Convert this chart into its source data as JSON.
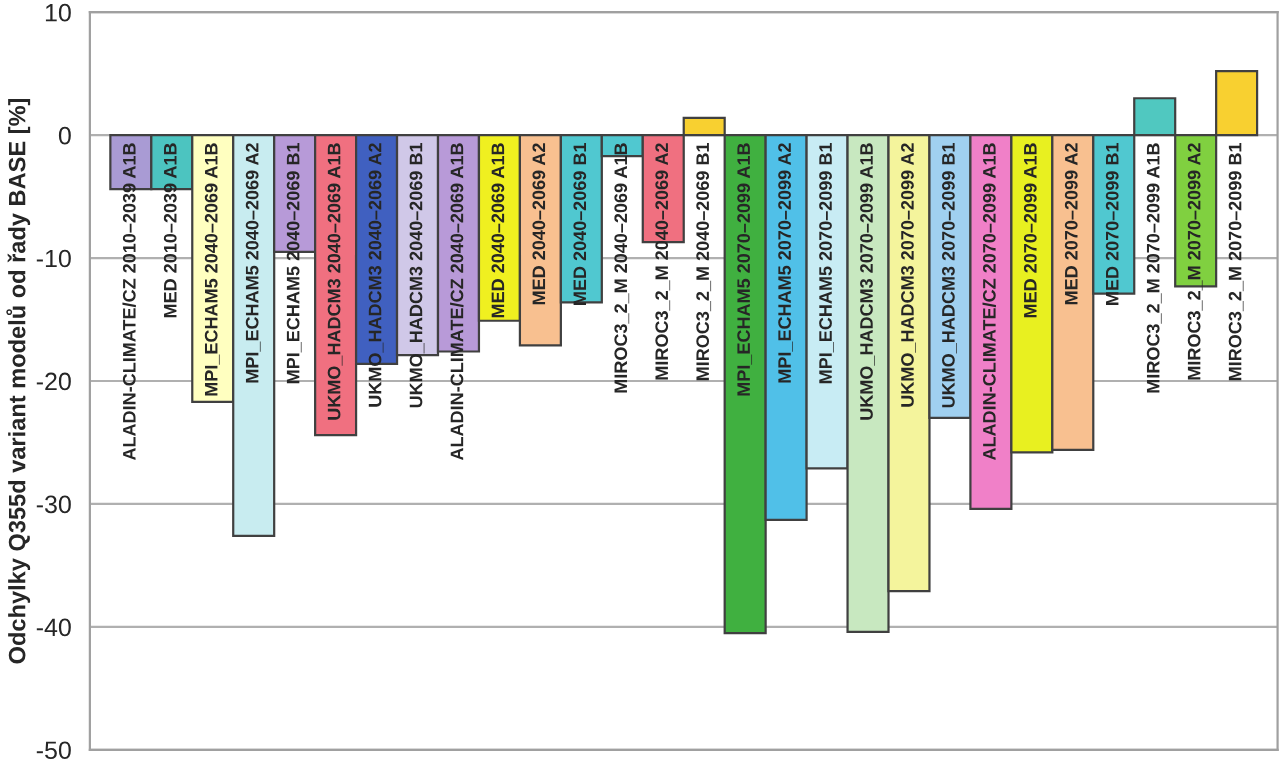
{
  "chart_data": {
    "type": "bar",
    "ylabel": "Odchylky Q355d variant modelů od řady BASE [%]",
    "categories": [
      "ALADIN-CLIMATE/CZ 2010–2039 A1B",
      "MED 2010–2039 A1B",
      "MPI_ECHAM5 2040–2069 A1B",
      "MPI_ECHAM5 2040–2069 A2",
      "MPI_ECHAM5 2040–2069 B1",
      "UKMO_HADCM3 2040–2069 A1B",
      "UKMO_HADCM3 2040–2069 A2",
      "UKMO_HADCM3 2040–2069 B1",
      "ALADIN-CLIMATE/CZ 2040–2069 A1B",
      "MED 2040–2069 A1B",
      "MED 2040–2069 A2",
      "MED 2040–2069 B1",
      "MIROC3_2_M 2040–2069 A1B",
      "MIROC3_2_M 2040–2069 A2",
      "MIROC3_2_M 2040–2069 B1",
      "MPI_ECHAM5 2070–2099 A1B",
      "MPI_ECHAM5 2070–2099 A2",
      "MPI_ECHAM5 2070–2099 B1",
      "UKMO_HADCM3 2070–2099 A1B",
      "UKMO_HADCM3 2070–2099 A2",
      "UKMO_HADCM3 2070–2099 B1",
      "ALADIN-CLIMATE/CZ 2070–2099 A1B",
      "MED 2070–2099 A1B",
      "MED 2070–2099 A2",
      "MED 2070–2099 B1",
      "MIROC3_2_M 2070–2099 A1B",
      "MIROC3_2_M 2070–2099 A2",
      "MIROC3_2_M 2070–2099 B1"
    ],
    "values": [
      -4.4,
      -4.4,
      -21.7,
      -32.6,
      -9.5,
      -24.4,
      -18.6,
      -17.9,
      -17.6,
      -15.1,
      -17.1,
      -13.6,
      -1.7,
      -8.7,
      1.4,
      -40.5,
      -31.3,
      -27.1,
      -40.4,
      -37.1,
      -23.0,
      -30.4,
      -25.8,
      -25.6,
      -12.9,
      3.0,
      -12.3,
      5.2
    ],
    "colors": [
      "#a99bd4",
      "#4cc4c0",
      "#ffffc0",
      "#c8ecf0",
      "#b79ad8",
      "#f07080",
      "#4060c0",
      "#d0c8e8",
      "#b89ad8",
      "#f0f020",
      "#f8c090",
      "#50c8d0",
      "#50c8d0",
      "#f07080",
      "#f8d030",
      "#40b040",
      "#50c0e8",
      "#c8ecf4",
      "#c8e8c0",
      "#f4f49c",
      "#a0d0f0",
      "#f080c8",
      "#e8f020",
      "#f8c090",
      "#50c8d0",
      "#50c8c0",
      "#80d040",
      "#f8d030"
    ],
    "ylim": [
      -50,
      10
    ],
    "yticks": [
      -50,
      -40,
      -30,
      -20,
      -10,
      0,
      10
    ],
    "grid": "y",
    "tick_labels": "y",
    "legend": false
  }
}
